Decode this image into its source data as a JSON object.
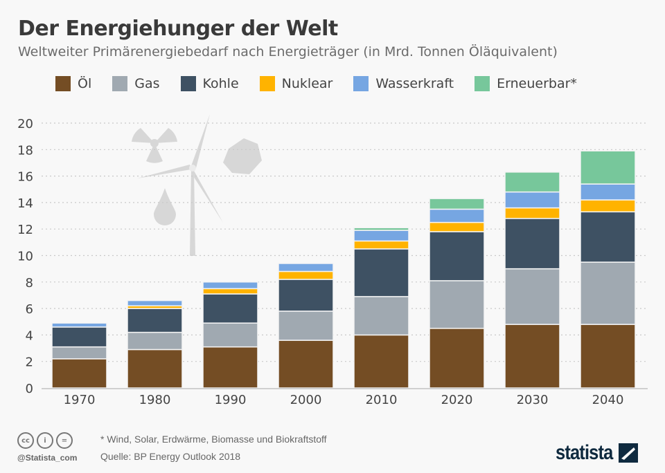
{
  "header": {
    "title": "Der Energiehunger der Welt",
    "subtitle": "Weltweiter Primärenergiebedarf nach Energieträger (in Mrd. Tonnen Öläquivalent)"
  },
  "legend": [
    {
      "label": "Öl",
      "color": "#744d24"
    },
    {
      "label": "Gas",
      "color": "#a0a9b1"
    },
    {
      "label": "Kohle",
      "color": "#3e5163"
    },
    {
      "label": "Nuklear",
      "color": "#ffb300"
    },
    {
      "label": "Wasserkraft",
      "color": "#76a6e2"
    },
    {
      "label": "Erneuerbar*",
      "color": "#77c79b"
    }
  ],
  "chart_data": {
    "type": "bar",
    "stacked": true,
    "title": "Der Energiehunger der Welt",
    "subtitle": "Weltweiter Primärenergiebedarf nach Energieträger (in Mrd. Tonnen Öläquivalent)",
    "categories": [
      "1970",
      "1980",
      "1990",
      "2000",
      "2010",
      "2020",
      "2030",
      "2040"
    ],
    "series": [
      {
        "name": "Öl",
        "color": "#744d24",
        "values": [
          2.2,
          2.9,
          3.1,
          3.6,
          4.0,
          4.5,
          4.8,
          4.8
        ]
      },
      {
        "name": "Gas",
        "color": "#a0a9b1",
        "values": [
          0.9,
          1.3,
          1.8,
          2.2,
          2.9,
          3.6,
          4.2,
          4.7
        ]
      },
      {
        "name": "Kohle",
        "color": "#3e5163",
        "values": [
          1.5,
          1.8,
          2.2,
          2.4,
          3.6,
          3.7,
          3.8,
          3.8
        ]
      },
      {
        "name": "Nuklear",
        "color": "#ffb300",
        "values": [
          0.0,
          0.2,
          0.4,
          0.6,
          0.6,
          0.7,
          0.8,
          0.9
        ]
      },
      {
        "name": "Wasserkraft",
        "color": "#76a6e2",
        "values": [
          0.3,
          0.4,
          0.5,
          0.6,
          0.8,
          1.0,
          1.2,
          1.2
        ]
      },
      {
        "name": "Erneuerbar*",
        "color": "#77c79b",
        "values": [
          0.0,
          0.0,
          0.0,
          0.0,
          0.2,
          0.8,
          1.5,
          2.5
        ]
      }
    ],
    "ylim": [
      0,
      20
    ],
    "yticks": [
      0,
      2,
      4,
      6,
      8,
      10,
      12,
      14,
      16,
      18,
      20
    ],
    "grid": true,
    "legend_position": "top"
  },
  "footer": {
    "note": "* Wind, Solar, Erdwärme, Biomasse und Biokraftstoff",
    "source": "Quelle: BP Energy Outlook 2018",
    "handle": "@Statista_com",
    "logo": "statista"
  }
}
